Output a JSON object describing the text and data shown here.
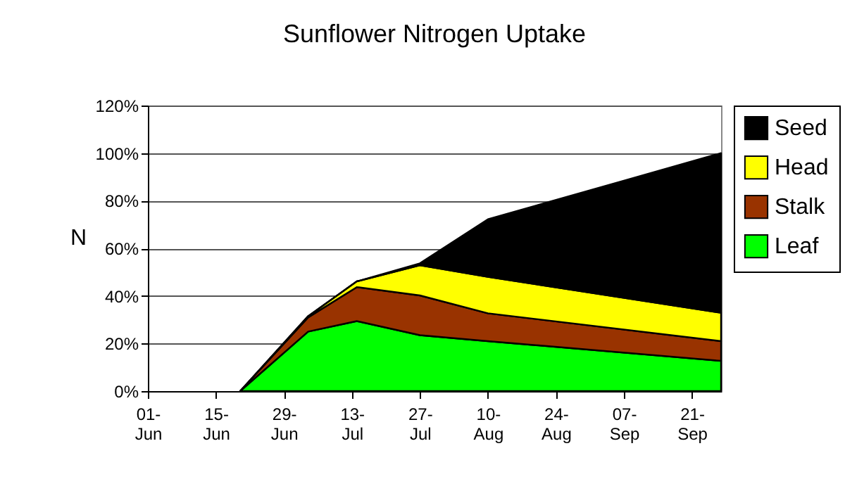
{
  "chart_data": {
    "type": "area",
    "stacked": true,
    "title": "Sunflower Nitrogen Uptake",
    "ylabel": "N",
    "x": [
      "--06-20",
      "--07-04",
      "--07-14",
      "--07-27",
      "--08-10",
      "--09-27"
    ],
    "series": [
      {
        "name": "Leaf",
        "color": "#00ff00",
        "values": [
          0,
          25,
          29.4,
          23.5,
          21,
          12.7
        ]
      },
      {
        "name": "Stalk",
        "color": "#993300",
        "values": [
          0,
          6,
          14.3,
          16.7,
          11.7,
          8.3
        ]
      },
      {
        "name": "Head",
        "color": "#ffff00",
        "values": [
          0,
          0.5,
          2.4,
          12.7,
          15.3,
          11.9
        ]
      },
      {
        "name": "Seed",
        "color": "#000000",
        "values": [
          0,
          0,
          0,
          0.8,
          24.2,
          67.1
        ]
      }
    ],
    "xlim": [
      "--06-01",
      "--09-27"
    ],
    "xticks": [
      {
        "value": "--06-01",
        "label": "01-\nJun"
      },
      {
        "value": "--06-15",
        "label": "15-\nJun"
      },
      {
        "value": "--06-29",
        "label": "29-\nJun"
      },
      {
        "value": "--07-13",
        "label": "13-\nJul"
      },
      {
        "value": "--07-27",
        "label": "27-\nJul"
      },
      {
        "value": "--08-10",
        "label": "10-\nAug"
      },
      {
        "value": "--08-24",
        "label": "24-\nAug"
      },
      {
        "value": "--09-07",
        "label": "07-\nSep"
      },
      {
        "value": "--09-21",
        "label": "21-\nSep"
      }
    ],
    "ylim": [
      0,
      120
    ],
    "yticks": [
      {
        "value": 0,
        "label": "0%"
      },
      {
        "value": 20,
        "label": "20%"
      },
      {
        "value": 40,
        "label": "40%"
      },
      {
        "value": 60,
        "label": "60%"
      },
      {
        "value": 80,
        "label": "80%"
      },
      {
        "value": 100,
        "label": "100%"
      },
      {
        "value": 120,
        "label": "120%"
      }
    ],
    "grid": "y",
    "legend": "right"
  }
}
